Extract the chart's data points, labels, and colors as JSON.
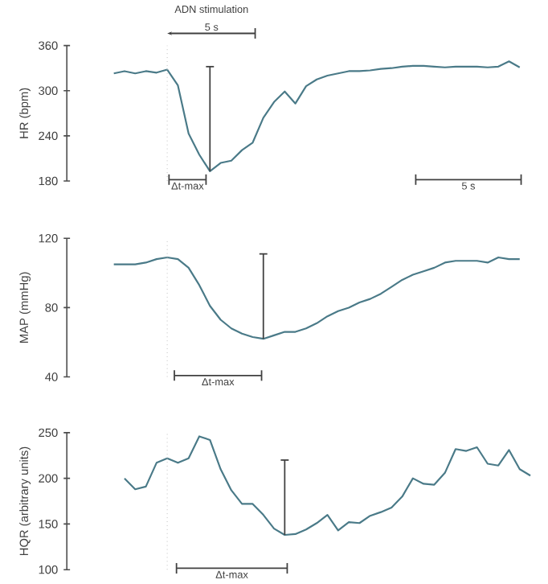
{
  "chart_data": [
    {
      "type": "line",
      "ylabel": "HR (bpm)",
      "ylim": [
        180,
        360
      ],
      "yticks": [
        180,
        240,
        300,
        360
      ],
      "tick_labels": "y",
      "categories": [
        null,
        null,
        null,
        null,
        null,
        null,
        null,
        null,
        null,
        null,
        null,
        null,
        null,
        null,
        null,
        null,
        null,
        null,
        null,
        null,
        null,
        null,
        null,
        null,
        null,
        null,
        null,
        null,
        null,
        null,
        null,
        null,
        null,
        null,
        null,
        null,
        null,
        null,
        null,
        null,
        null
      ],
      "series": [
        {
          "color": "#4a7a88",
          "values": [
            null,
            323,
            326,
            323,
            326,
            324,
            328,
            307,
            243,
            215,
            193,
            204,
            207,
            221,
            231,
            264,
            285,
            299,
            283,
            306,
            315,
            320,
            323,
            326,
            326,
            327,
            329,
            330,
            332,
            333,
            333,
            332,
            331,
            332,
            332,
            332,
            331,
            332,
            339,
            331,
            null
          ],
          "errors": [
            null,
            null,
            null,
            null,
            null,
            null,
            null,
            null,
            null,
            null,
            [
              193,
              332
            ],
            null,
            null,
            null,
            null,
            null,
            null,
            null,
            null,
            null,
            null,
            null,
            null,
            null,
            null,
            null,
            null,
            null,
            null,
            null,
            null,
            null,
            null,
            null,
            null,
            null,
            null,
            null,
            null,
            null,
            null
          ]
        }
      ],
      "annotations": [
        "ADN stimulation",
        "5 s",
        "Δt-max",
        "5 s"
      ]
    },
    {
      "type": "line",
      "ylabel": "MAP (mmHg)",
      "ylim": [
        40,
        120
      ],
      "yticks": [
        40,
        80,
        120
      ],
      "tick_labels": "y",
      "categories": [
        null,
        null,
        null,
        null,
        null,
        null,
        null,
        null,
        null,
        null,
        null,
        null,
        null,
        null,
        null,
        null,
        null,
        null,
        null,
        null,
        null,
        null,
        null,
        null,
        null,
        null,
        null,
        null,
        null,
        null,
        null,
        null,
        null,
        null,
        null,
        null,
        null,
        null,
        null,
        null,
        null
      ],
      "series": [
        {
          "color": "#4a7a88",
          "values": [
            null,
            105,
            105,
            105,
            106,
            108,
            109,
            108,
            103,
            93,
            81,
            73,
            68,
            65,
            63,
            62,
            64,
            66,
            66,
            68,
            71,
            75,
            78,
            80,
            83,
            85,
            88,
            92,
            96,
            99,
            101,
            103,
            106,
            107,
            107,
            107,
            106,
            109,
            108,
            108,
            null
          ],
          "errors": [
            null,
            null,
            null,
            null,
            null,
            null,
            null,
            null,
            null,
            null,
            null,
            null,
            null,
            null,
            null,
            [
              62,
              111
            ],
            null,
            null,
            null,
            null,
            null,
            null,
            null,
            null,
            null,
            null,
            null,
            null,
            null,
            null,
            null,
            null,
            null,
            null,
            null,
            null,
            null,
            null,
            null,
            null,
            null
          ]
        }
      ],
      "annotations": [
        "Δt-max"
      ]
    },
    {
      "type": "line",
      "ylabel": "HQR (arbitrary units)",
      "ylim": [
        100,
        250
      ],
      "yticks": [
        100,
        150,
        200,
        250
      ],
      "tick_labels": "y",
      "categories": [
        null,
        null,
        null,
        null,
        null,
        null,
        null,
        null,
        null,
        null,
        null,
        null,
        null,
        null,
        null,
        null,
        null,
        null,
        null,
        null,
        null,
        null,
        null,
        null,
        null,
        null,
        null,
        null,
        null,
        null,
        null,
        null,
        null,
        null,
        null,
        null,
        null,
        null,
        null,
        null,
        null
      ],
      "series": [
        {
          "color": "#4a7a88",
          "values": [
            null,
            null,
            200,
            188,
            191,
            217,
            222,
            217,
            222,
            246,
            242,
            210,
            187,
            172,
            172,
            160,
            145,
            138,
            139,
            144,
            151,
            160,
            143,
            152,
            151,
            159,
            163,
            168,
            180,
            200,
            194,
            193,
            206,
            232,
            230,
            234,
            216,
            214,
            231,
            210,
            203
          ],
          "errors": [
            null,
            null,
            null,
            null,
            null,
            null,
            null,
            null,
            null,
            null,
            null,
            null,
            null,
            null,
            null,
            null,
            null,
            [
              138,
              220
            ],
            null,
            null,
            null,
            null,
            null,
            null,
            null,
            null,
            null,
            null,
            null,
            null,
            null,
            null,
            null,
            null,
            null,
            null,
            null,
            null,
            null,
            null,
            null
          ]
        }
      ],
      "annotations": [
        "Δt-max"
      ]
    }
  ]
}
